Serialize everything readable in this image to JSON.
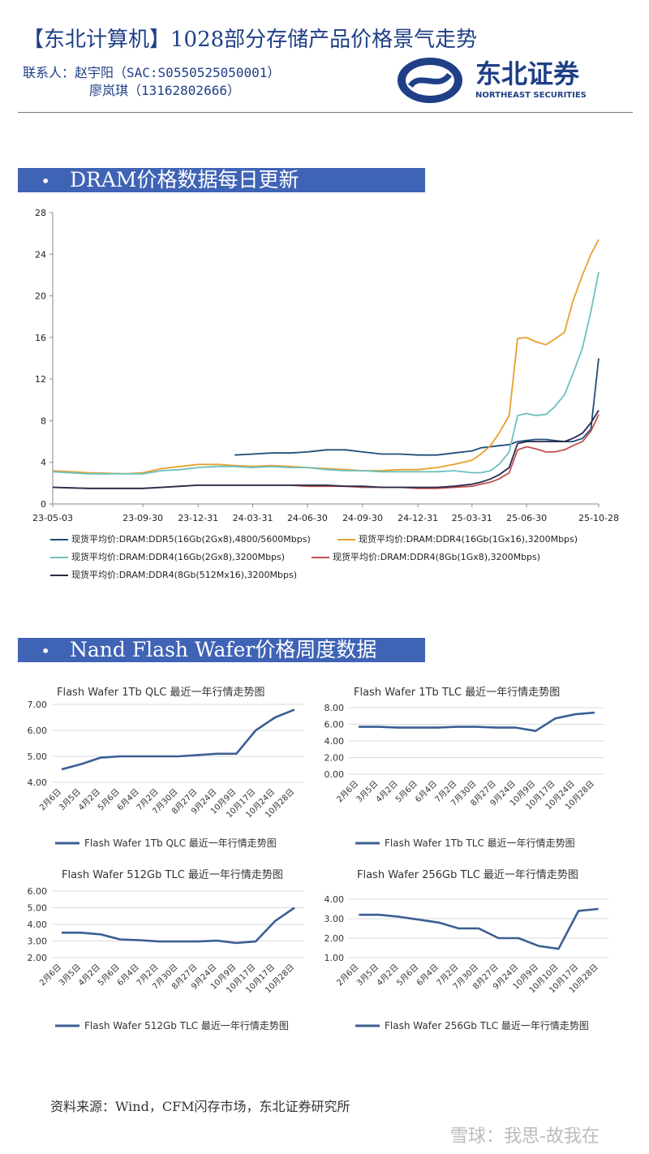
{
  "header": {
    "title": "【东北计算机】1028部分存储产品价格景气走势",
    "contact_label": "联系人：",
    "contact1": "赵宇阳（SAC:S0550525050001）",
    "contact2": "廖岚琪（13162802666）",
    "logo_text": "东北证券",
    "logo_sub": "NORTHEAST SECURITIES"
  },
  "section1": {
    "bullet": "•",
    "title": "DRAM价格数据每日更新"
  },
  "section2": {
    "bullet": "•",
    "title": "Nand Flash Wafer价格周度数据"
  },
  "colors": {
    "navy": "#1f3f86",
    "banner": "#3f63b5",
    "ddr5": "#1f4e79",
    "ddr4_16g_1g": "#e6a02e",
    "ddr4_16g_2g": "#6cc0bd",
    "ddr4_8g_1g": "#c0504d",
    "ddr4_8g_512": "#2b2a4c",
    "wafer": "#3b5f93"
  },
  "chart_data": [
    {
      "type": "line",
      "ylim": [
        0,
        28
      ],
      "yticks": [
        0,
        4,
        8,
        12,
        16,
        20,
        24,
        28
      ],
      "xticks": [
        "23-05-03",
        "23-09-30",
        "23-12-31",
        "24-03-31",
        "24-06-30",
        "24-09-30",
        "24-12-31",
        "25-03-31",
        "25-06-30",
        "25-10-28"
      ],
      "x": [
        "23-05-03",
        "23-07-01",
        "23-09-01",
        "23-09-30",
        "23-11-01",
        "23-12-01",
        "23-12-31",
        "24-02-01",
        "24-03-01",
        "24-03-31",
        "24-05-01",
        "24-06-01",
        "24-06-30",
        "24-08-01",
        "24-09-01",
        "24-09-30",
        "24-11-01",
        "24-12-01",
        "24-12-31",
        "25-02-01",
        "25-03-01",
        "25-03-31",
        "25-04-15",
        "25-05-01",
        "25-05-15",
        "25-06-01",
        "25-06-15",
        "25-06-30",
        "25-07-15",
        "25-08-01",
        "25-08-15",
        "25-09-01",
        "25-09-15",
        "25-10-01",
        "25-10-15",
        "25-10-28"
      ],
      "series": [
        {
          "name": "现货平均价:DRAM:DDR5(16Gb(2Gx8),4800/5600Mbps)",
          "color_key": "ddr5",
          "values": [
            null,
            null,
            null,
            null,
            null,
            null,
            null,
            null,
            4.7,
            4.8,
            4.9,
            4.9,
            5.0,
            5.2,
            5.2,
            5.0,
            4.8,
            4.8,
            4.7,
            4.7,
            4.9,
            5.1,
            5.4,
            5.5,
            5.6,
            5.7,
            6.0,
            6.1,
            6.2,
            6.2,
            6.1,
            6.0,
            6.0,
            6.3,
            7.2,
            14.0
          ]
        },
        {
          "name": "现货平均价:DRAM:DDR4(16Gb(1Gx16),3200Mbps)",
          "color_key": "ddr4_16g_1g",
          "values": [
            3.2,
            3.0,
            2.9,
            3.0,
            3.4,
            3.6,
            3.8,
            3.8,
            3.7,
            3.6,
            3.7,
            3.6,
            3.5,
            3.4,
            3.3,
            3.2,
            3.2,
            3.3,
            3.3,
            3.5,
            3.8,
            4.2,
            4.8,
            5.6,
            6.8,
            8.5,
            15.9,
            16.0,
            15.6,
            15.3,
            15.8,
            16.5,
            19.5,
            22.0,
            24.0,
            25.4
          ]
        },
        {
          "name": "现货平均价:DRAM:DDR4(16Gb(2Gx8),3200Mbps)",
          "color_key": "ddr4_16g_2g",
          "values": [
            3.1,
            2.9,
            2.9,
            2.9,
            3.2,
            3.3,
            3.5,
            3.6,
            3.6,
            3.5,
            3.6,
            3.5,
            3.5,
            3.3,
            3.2,
            3.2,
            3.1,
            3.1,
            3.1,
            3.1,
            3.2,
            3.0,
            3.0,
            3.2,
            3.8,
            5.0,
            8.5,
            8.7,
            8.5,
            8.6,
            9.3,
            10.5,
            12.5,
            15.0,
            18.5,
            22.3
          ]
        },
        {
          "name": "现货平均价:DRAM:DDR4(8Gb(1Gx8),3200Mbps)",
          "color_key": "ddr4_8g_1g",
          "values": [
            1.6,
            1.5,
            1.5,
            1.5,
            1.6,
            1.7,
            1.8,
            1.8,
            1.8,
            1.8,
            1.8,
            1.8,
            1.7,
            1.7,
            1.7,
            1.6,
            1.6,
            1.6,
            1.5,
            1.5,
            1.6,
            1.7,
            1.9,
            2.1,
            2.4,
            3.0,
            5.2,
            5.5,
            5.3,
            5.0,
            5.0,
            5.2,
            5.6,
            6.0,
            7.0,
            8.6
          ]
        },
        {
          "name": "现货平均价:DRAM:DDR4(8Gb(512Mx16),3200Mbps)",
          "color_key": "ddr4_8g_512",
          "values": [
            1.6,
            1.5,
            1.5,
            1.5,
            1.6,
            1.7,
            1.8,
            1.8,
            1.8,
            1.8,
            1.8,
            1.8,
            1.8,
            1.8,
            1.7,
            1.7,
            1.6,
            1.6,
            1.6,
            1.6,
            1.7,
            1.9,
            2.1,
            2.4,
            2.8,
            3.5,
            5.8,
            6.0,
            6.0,
            6.0,
            6.0,
            6.0,
            6.3,
            6.8,
            7.8,
            9.0
          ]
        }
      ]
    },
    {
      "type": "line",
      "title": "Flash Wafer 1Tb QLC 最近一年行情走势图",
      "ylim": [
        4,
        7
      ],
      "yticks": [
        "4.00",
        "5.00",
        "6.00",
        "7.00"
      ],
      "categories": [
        "2月6日",
        "3月5日",
        "4月2日",
        "5月6日",
        "6月4日",
        "7月2日",
        "7月30日",
        "8月27日",
        "9月24日",
        "10月9日",
        "10月17日",
        "10月24日",
        "10月28日"
      ],
      "values": [
        4.5,
        4.7,
        4.95,
        5.0,
        5.0,
        5.0,
        5.0,
        5.05,
        5.1,
        5.1,
        6.0,
        6.5,
        6.8
      ],
      "legend": "Flash Wafer 1Tb QLC 最近一年行情走势图"
    },
    {
      "type": "line",
      "title": "Flash Wafer 1Tb TLC 最近一年行情走势图",
      "ylim": [
        0,
        8
      ],
      "yticks": [
        "0.00",
        "2.00",
        "4.00",
        "6.00",
        "8.00"
      ],
      "categories": [
        "2月6日",
        "3月5日",
        "4月2日",
        "5月6日",
        "6月4日",
        "7月2日",
        "7月30日",
        "8月27日",
        "9月24日",
        "10月9日",
        "10月17日",
        "10月24日",
        "10月28日"
      ],
      "values": [
        5.7,
        5.7,
        5.6,
        5.6,
        5.6,
        5.7,
        5.7,
        5.6,
        5.6,
        5.2,
        6.7,
        7.2,
        7.4
      ],
      "legend": "Flash Wafer 1Tb TLC 最近一年行情走势图"
    },
    {
      "type": "line",
      "title": "Flash Wafer 512Gb TLC 最近一年行情走势图",
      "ylim": [
        2,
        6
      ],
      "yticks": [
        "2.00",
        "3.00",
        "4.00",
        "5.00",
        "6.00"
      ],
      "categories": [
        "2月6日",
        "3月5日",
        "4月2日",
        "5月6日",
        "6月4日",
        "7月2日",
        "7月30日",
        "8月27日",
        "9月24日",
        "10月9日",
        "10月17日",
        "10月17日",
        "10月28日"
      ],
      "values": [
        3.5,
        3.5,
        3.4,
        3.1,
        3.05,
        2.97,
        2.97,
        2.97,
        3.02,
        2.88,
        2.97,
        4.2,
        5.0
      ],
      "legend": "Flash Wafer 512Gb TLC 最近一年行情走势图"
    },
    {
      "type": "line",
      "title": "Flash Wafer 256Gb TLC 最近一年行情走势图",
      "ylim": [
        1,
        4
      ],
      "yticks": [
        "1.00",
        "2.00",
        "3.00",
        "4.00"
      ],
      "categories": [
        "2月6日",
        "3月5日",
        "4月2日",
        "5月6日",
        "6月4日",
        "7月2日",
        "7月30日",
        "8月27日",
        "9月24日",
        "10月9日",
        "10月10日",
        "10月17日",
        "10月28日"
      ],
      "values": [
        3.2,
        3.2,
        3.1,
        2.95,
        2.8,
        2.5,
        2.5,
        2.0,
        2.0,
        1.6,
        1.45,
        3.4,
        3.5
      ],
      "legend": "Flash Wafer 256Gb TLC 最近一年行情走势图"
    }
  ],
  "footer": {
    "source": "资料来源：Wind，CFM闪存市场，东北证券研究所",
    "watermark": "雪球：我思-故我在"
  }
}
